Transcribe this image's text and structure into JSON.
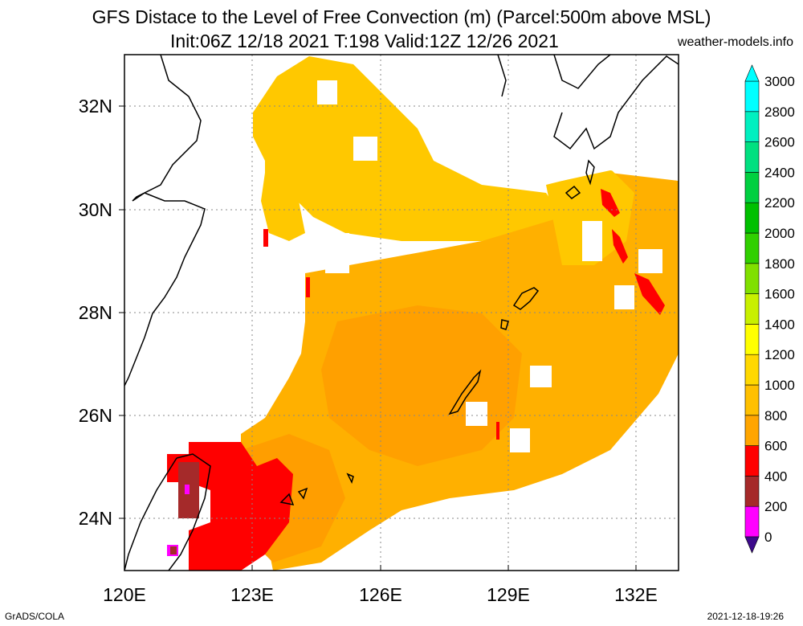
{
  "title": {
    "line1": "GFS Distace to the Level of Free Convection (m) (Parcel:500m above MSL)",
    "line2": "Init:06Z 12/18 2021 T:198 Valid:12Z 12/26 2021",
    "site": "weather-models.info"
  },
  "footer": {
    "left": "GrADS/COLA",
    "right": "2021-12-18-19:26"
  },
  "map": {
    "lon_range": [
      120,
      133
    ],
    "lat_range": [
      23,
      33
    ],
    "lon_ticks": [
      {
        "value": 120,
        "label": "120E"
      },
      {
        "value": 123,
        "label": "123E"
      },
      {
        "value": 126,
        "label": "126E"
      },
      {
        "value": 129,
        "label": "129E"
      },
      {
        "value": 132,
        "label": "132E"
      }
    ],
    "lat_ticks": [
      {
        "value": 24,
        "label": "24N"
      },
      {
        "value": 26,
        "label": "26N"
      },
      {
        "value": 28,
        "label": "28N"
      },
      {
        "value": 30,
        "label": "30N"
      },
      {
        "value": 32,
        "label": "32N"
      }
    ]
  },
  "colorbar": {
    "levels": [
      {
        "value": 0,
        "label": "0",
        "color": "#3d0a8c"
      },
      {
        "value": 200,
        "label": "200",
        "color": "#ff00ff"
      },
      {
        "value": 400,
        "label": "400",
        "color": "#a52a2a"
      },
      {
        "value": 600,
        "label": "600",
        "color": "#ff0000"
      },
      {
        "value": 800,
        "label": "800",
        "color": "#ffa500"
      },
      {
        "value": 1000,
        "label": "1000",
        "color": "#ffc000"
      },
      {
        "value": 1200,
        "label": "1200",
        "color": "#ffd800"
      },
      {
        "value": 1400,
        "label": "1400",
        "color": "#ffff00"
      },
      {
        "value": 1600,
        "label": "1600",
        "color": "#c8f000"
      },
      {
        "value": 1800,
        "label": "1800",
        "color": "#80e000"
      },
      {
        "value": 2000,
        "label": "2000",
        "color": "#30d000"
      },
      {
        "value": 2200,
        "label": "2200",
        "color": "#00c000"
      },
      {
        "value": 2400,
        "label": "2400",
        "color": "#00d040"
      },
      {
        "value": 2600,
        "label": "2600",
        "color": "#00e080"
      },
      {
        "value": 2800,
        "label": "2800",
        "color": "#00f0c0"
      },
      {
        "value": 3000,
        "label": "3000",
        "color": "#00ffff"
      }
    ]
  },
  "field_colors": {
    "deep_orange": "#ffa500",
    "mid_orange": "#ffb400",
    "gold": "#ffc800",
    "red": "#ff0000",
    "brown": "#a52a2a",
    "magenta": "#ff00ff"
  }
}
